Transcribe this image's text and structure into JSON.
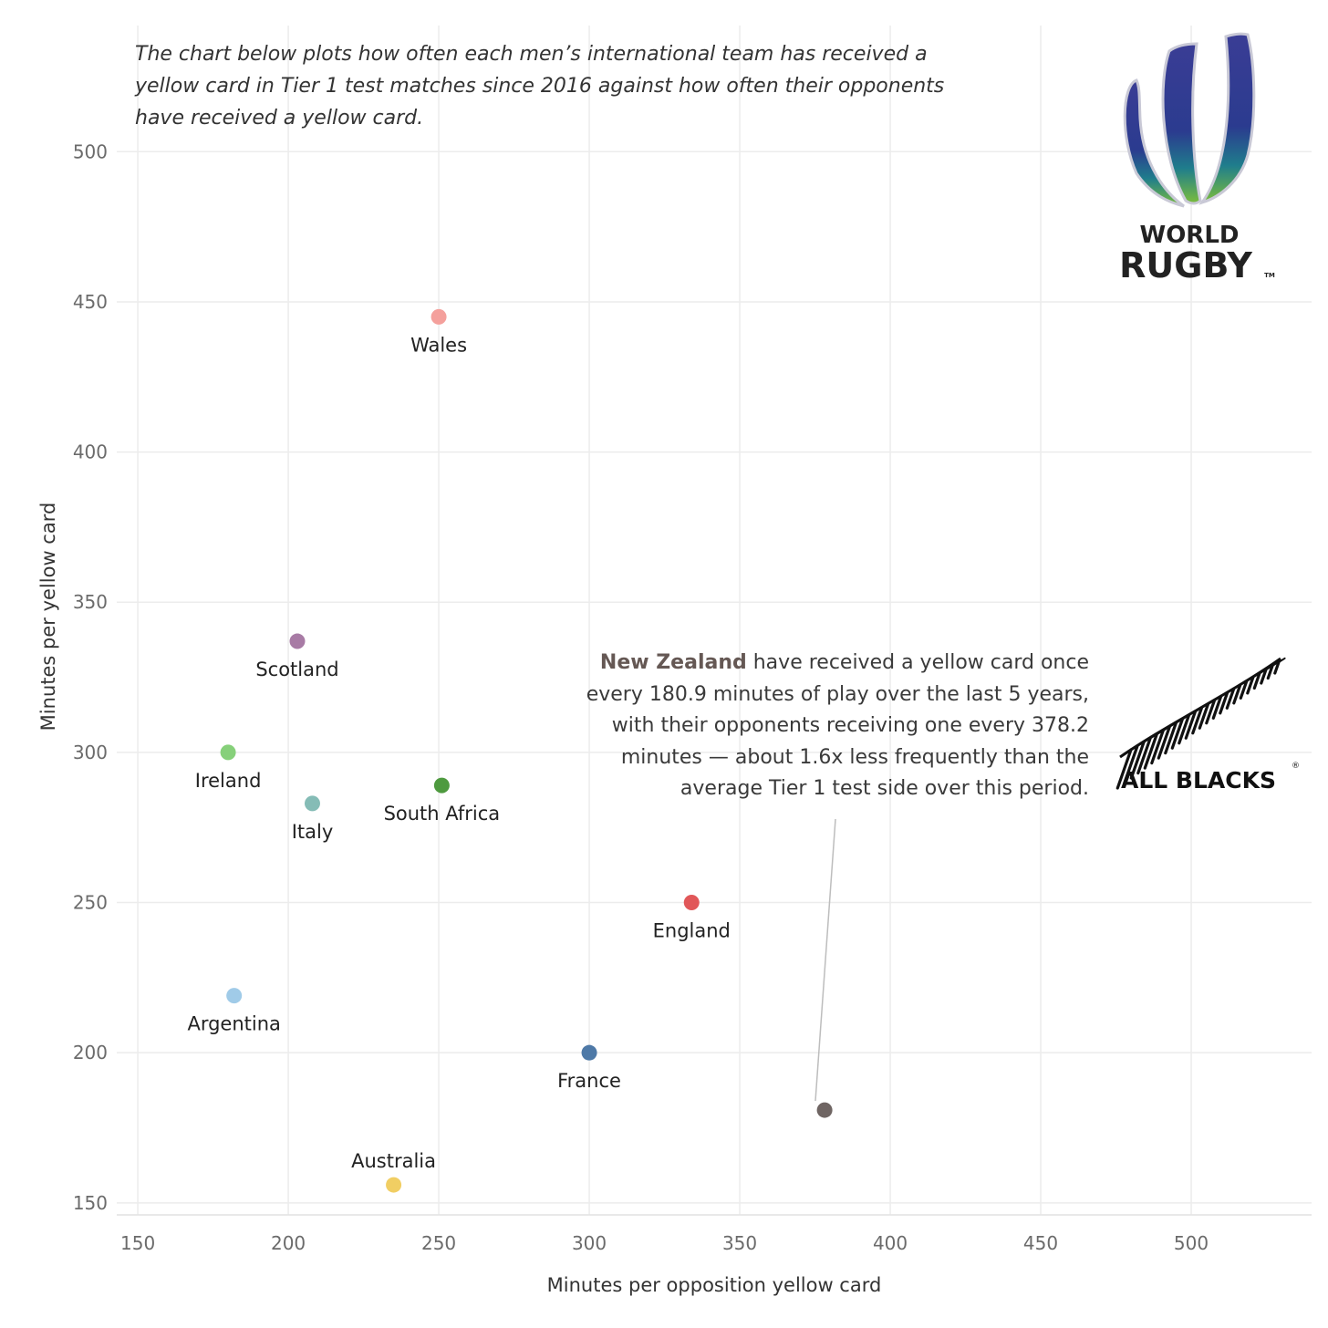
{
  "intro_text": "The chart below plots how often each men’s international team has received a yellow card in Tier 1 test matches since 2016 against how often their opponents have received a yellow card.",
  "annotation": {
    "team": "New Zealand",
    "text": " have received a yellow card once every 180.9 minutes of play over the last 5 years, with their opponents receiving one every 378.2 minutes — about 1.6x less frequently than the average Tier 1 test side over this period."
  },
  "logos": {
    "world_rugby_line1": "WORLD",
    "world_rugby_line2": "RUGBY",
    "world_rugby_tm": "TM",
    "all_blacks": "ALL BLACKS"
  },
  "chart_data": {
    "type": "scatter",
    "xlabel": "Minutes per opposition yellow card",
    "ylabel": "Minutes per yellow card",
    "xlim": [
      143,
      540
    ],
    "ylim": [
      146,
      542
    ],
    "xticks": [
      150,
      200,
      250,
      300,
      350,
      400,
      450,
      500
    ],
    "yticks": [
      150,
      200,
      250,
      300,
      350,
      400,
      450,
      500
    ],
    "grid": true,
    "points": [
      {
        "team": "Wales",
        "x": 250,
        "y": 445,
        "color": "#f4a09c",
        "label_pos": "below"
      },
      {
        "team": "Scotland",
        "x": 203,
        "y": 337,
        "color": "#a87ba5",
        "label_pos": "below"
      },
      {
        "team": "Ireland",
        "x": 180,
        "y": 300,
        "color": "#86d07a",
        "label_pos": "below"
      },
      {
        "team": "Italy",
        "x": 208,
        "y": 283,
        "color": "#85bcb6",
        "label_pos": "below"
      },
      {
        "team": "South Africa",
        "x": 251,
        "y": 289,
        "color": "#4e9a3f",
        "label_pos": "below"
      },
      {
        "team": "England",
        "x": 334,
        "y": 250,
        "color": "#e15759",
        "label_pos": "below"
      },
      {
        "team": "Argentina",
        "x": 182,
        "y": 219,
        "color": "#a0cbe8",
        "label_pos": "below"
      },
      {
        "team": "France",
        "x": 300,
        "y": 200,
        "color": "#4e79a7",
        "label_pos": "below"
      },
      {
        "team": "Australia",
        "x": 235,
        "y": 156,
        "color": "#f1ce63",
        "label_pos": "above"
      },
      {
        "team": "New Zealand",
        "x": 378.2,
        "y": 180.9,
        "color": "#6f6563",
        "label_pos": "none"
      }
    ]
  }
}
